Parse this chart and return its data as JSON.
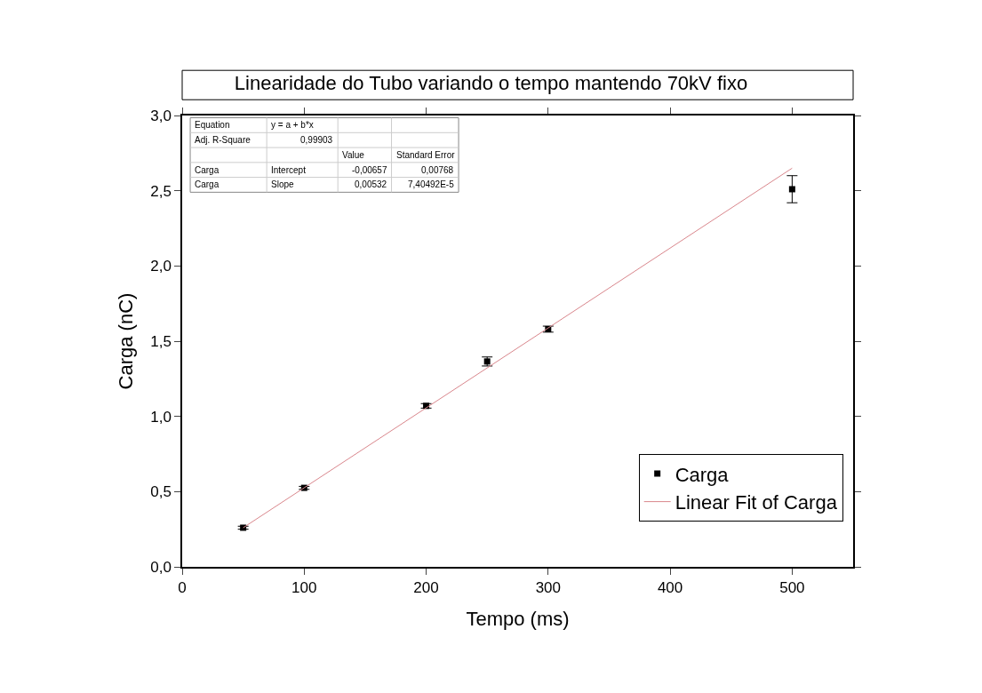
{
  "chart_data": {
    "type": "scatter",
    "title": "Linearidade do Tubo variando o tempo mantendo 70kV fixo",
    "xlabel": "Tempo (ms)",
    "ylabel": "Carga (nC)",
    "series": [
      {
        "name": "Carga",
        "color": "#000000",
        "marker": "square",
        "x": [
          50,
          100,
          200,
          250,
          300,
          500
        ],
        "values": [
          0.26,
          0.525,
          1.07,
          1.365,
          1.58,
          2.51
        ],
        "errors": [
          0.01,
          0.01,
          0.015,
          0.03,
          0.02,
          0.09
        ]
      },
      {
        "name": "Linear Fit of Carga",
        "type": "line",
        "color": "#d9868c",
        "marker": "none",
        "x": [
          50,
          500
        ],
        "values": [
          0.26,
          2.65
        ]
      }
    ],
    "xlim": [
      0,
      550
    ],
    "xticks": [
      0,
      100,
      200,
      300,
      400,
      500
    ],
    "ylim": [
      0,
      3
    ],
    "yticks": [
      {
        "value": 0,
        "label": "0,0"
      },
      {
        "value": 0.5,
        "label": "0,5"
      },
      {
        "value": 1,
        "label": "1,0"
      },
      {
        "value": 1.5,
        "label": "1,5"
      },
      {
        "value": 2,
        "label": "2,0"
      },
      {
        "value": 2.5,
        "label": "2,5"
      },
      {
        "value": 3,
        "label": "3,0"
      }
    ],
    "grid": false,
    "legend": "bottom right",
    "annotations": [
      "Equation",
      "y = a + b*x",
      "Adj. R-Square",
      "0,99903",
      "Value",
      "Standard Error",
      "Carga",
      "Intercept",
      "-0,00657",
      "0,00768",
      "Carga",
      "Slope",
      "0,00532",
      "7,40492E-5"
    ]
  }
}
